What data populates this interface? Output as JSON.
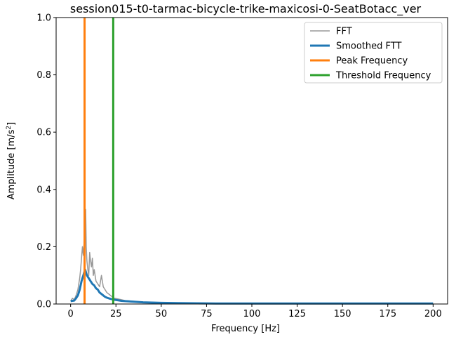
{
  "chart_data": {
    "type": "line",
    "title": "session015-t0-tarmac-bicycle-trike-maxicosi-0-SeatBotacc_ver",
    "xlabel": "Frequency [Hz]",
    "ylabel": "Amplitude [m/s",
    "ylabel_sup": "2",
    "ylabel_end": "]",
    "xlim": [
      -8,
      208
    ],
    "ylim": [
      0,
      1.0
    ],
    "xticks": [
      0,
      25,
      50,
      75,
      100,
      125,
      150,
      175,
      200
    ],
    "xtick_labels": [
      "0",
      "25",
      "50",
      "75",
      "100",
      "125",
      "150",
      "175",
      "200"
    ],
    "yticks": [
      0.0,
      0.2,
      0.4,
      0.6,
      0.8,
      1.0
    ],
    "ytick_labels": [
      "0.0",
      "0.2",
      "0.4",
      "0.6",
      "0.8",
      "1.0"
    ],
    "legend_position": "top-right",
    "series": [
      {
        "name": "FFT",
        "color": "#999999",
        "x": [
          0,
          1,
          2,
          3,
          4,
          4.5,
          5,
          5.5,
          6,
          6.5,
          7,
          7.5,
          8,
          8.3,
          8.6,
          9,
          9.5,
          10,
          10.5,
          11,
          11.5,
          12,
          12.5,
          13,
          14,
          15,
          16,
          17,
          18,
          19,
          20,
          21,
          22,
          23,
          24,
          26,
          28,
          30,
          35,
          40,
          50,
          60,
          80,
          100,
          150,
          200
        ],
        "y": [
          0.01,
          0.02,
          0.015,
          0.03,
          0.05,
          0.07,
          0.09,
          0.12,
          0.16,
          0.2,
          0.17,
          0.22,
          0.25,
          0.33,
          0.2,
          0.15,
          0.12,
          0.1,
          0.18,
          0.15,
          0.13,
          0.16,
          0.1,
          0.12,
          0.08,
          0.07,
          0.06,
          0.1,
          0.06,
          0.05,
          0.04,
          0.035,
          0.03,
          0.025,
          0.02,
          0.018,
          0.015,
          0.012,
          0.009,
          0.007,
          0.005,
          0.004,
          0.003,
          0.002,
          0.002,
          0.002
        ]
      },
      {
        "name": "Smoothed FTT",
        "color": "#1f77b4",
        "x": [
          0,
          2,
          3,
          4,
          5,
          6,
          7,
          8,
          9,
          10,
          11,
          12,
          13,
          14,
          15,
          16,
          17,
          18,
          19,
          20,
          22,
          24,
          26,
          28,
          30,
          35,
          40,
          50,
          60,
          80,
          100,
          150,
          200
        ],
        "y": [
          0.01,
          0.012,
          0.02,
          0.03,
          0.05,
          0.08,
          0.1,
          0.12,
          0.1,
          0.09,
          0.08,
          0.07,
          0.065,
          0.055,
          0.05,
          0.04,
          0.035,
          0.03,
          0.025,
          0.022,
          0.018,
          0.015,
          0.013,
          0.011,
          0.01,
          0.008,
          0.006,
          0.004,
          0.003,
          0.002,
          0.002,
          0.002,
          0.002
        ]
      },
      {
        "name": "Peak Frequency",
        "color": "#ff7f0e",
        "vline_x": 7.7
      },
      {
        "name": "Threshold Frequency",
        "color": "#2ca02c",
        "vline_x": 23.5
      }
    ]
  }
}
